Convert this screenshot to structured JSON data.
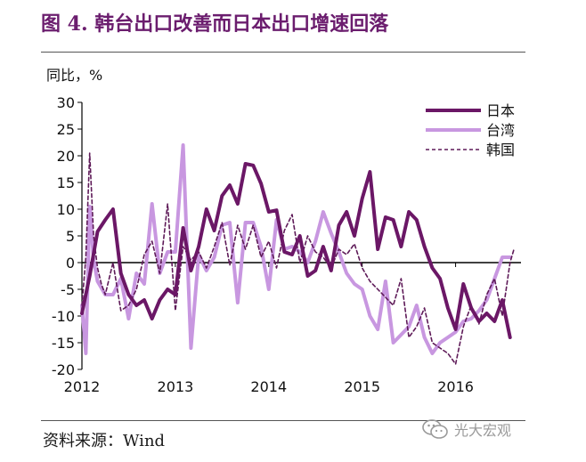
{
  "figure": {
    "title": "图 4. 韩台出口改善而日本出口增速回落",
    "source": "资料来源：Wind",
    "watermark": "光大宏观"
  },
  "chart_data": {
    "type": "line",
    "ylabel": "同比，%",
    "ylim": [
      -20,
      30
    ],
    "yticks": [
      -20,
      -15,
      -10,
      -5,
      0,
      5,
      10,
      15,
      20,
      25,
      30
    ],
    "xlim": [
      2012.0,
      2016.7
    ],
    "xticks": [
      "2012",
      "2013",
      "2014",
      "2015",
      "2016"
    ],
    "grid": false,
    "legend_position": "top-right",
    "colors": {
      "japan": "#6b1766",
      "taiwan": "#c897e0",
      "korea": "#5e1a58"
    },
    "series": [
      {
        "name": "日本",
        "key": "japan",
        "style": "solid-thick",
        "x": [
          2012.0,
          2012.083,
          2012.167,
          2012.25,
          2012.333,
          2012.417,
          2012.5,
          2012.583,
          2012.667,
          2012.75,
          2012.833,
          2012.917,
          2013.0,
          2013.083,
          2013.167,
          2013.25,
          2013.333,
          2013.417,
          2013.5,
          2013.583,
          2013.667,
          2013.75,
          2013.833,
          2013.917,
          2014.0,
          2014.083,
          2014.167,
          2014.25,
          2014.333,
          2014.417,
          2014.5,
          2014.583,
          2014.667,
          2014.75,
          2014.833,
          2014.917,
          2015.0,
          2015.083,
          2015.167,
          2015.25,
          2015.333,
          2015.417,
          2015.5,
          2015.583,
          2015.667,
          2015.75,
          2015.833,
          2015.917,
          2016.0,
          2016.083,
          2016.167,
          2016.25,
          2016.333,
          2016.417,
          2016.5,
          2016.583
        ],
        "values": [
          -9.5,
          -2.5,
          5.8,
          8.0,
          10.0,
          -2.0,
          -6.0,
          -8.0,
          -7.0,
          -10.5,
          -7.0,
          -5.0,
          -6.0,
          6.5,
          -1.5,
          3.0,
          10.0,
          6.0,
          12.5,
          14.5,
          11.0,
          18.5,
          18.2,
          14.8,
          9.5,
          9.8,
          2.0,
          1.5,
          5.0,
          -2.5,
          -1.5,
          3.0,
          -1.5,
          7.0,
          9.5,
          5.0,
          12.0,
          17.0,
          2.5,
          8.5,
          8.0,
          3.0,
          9.5,
          8.0,
          3.0,
          -1.0,
          -3.0,
          -8.5,
          -12.5,
          -4.0,
          -8.5,
          -11.0,
          -9.5,
          -11.0,
          -7.0,
          -14.0
        ]
      },
      {
        "name": "台湾",
        "key": "taiwan",
        "style": "solid-thick",
        "x": [
          2012.0,
          2012.042,
          2012.083,
          2012.125,
          2012.167,
          2012.25,
          2012.333,
          2012.417,
          2012.5,
          2012.583,
          2012.667,
          2012.75,
          2012.833,
          2012.917,
          2013.0,
          2013.083,
          2013.167,
          2013.25,
          2013.333,
          2013.417,
          2013.5,
          2013.583,
          2013.667,
          2013.75,
          2013.833,
          2013.917,
          2014.0,
          2014.083,
          2014.167,
          2014.25,
          2014.333,
          2014.417,
          2014.5,
          2014.583,
          2014.667,
          2014.75,
          2014.833,
          2014.917,
          2015.0,
          2015.083,
          2015.167,
          2015.25,
          2015.333,
          2015.417,
          2015.5,
          2015.583,
          2015.667,
          2015.75,
          2015.833,
          2015.917,
          2016.0,
          2016.083,
          2016.167,
          2016.25,
          2016.333,
          2016.417,
          2016.5,
          2016.583
        ],
        "values": [
          -8.0,
          -17.0,
          10.5,
          0.5,
          -3.5,
          -6.0,
          -6.0,
          -3.0,
          -10.5,
          -2.0,
          -4.0,
          11.0,
          -2.0,
          2.0,
          2.0,
          22.0,
          -16.0,
          1.5,
          -1.5,
          1.0,
          7.0,
          7.5,
          -7.5,
          7.5,
          7.5,
          3.0,
          -5.0,
          8.0,
          2.5,
          3.0,
          2.0,
          0.0,
          4.0,
          9.5,
          5.5,
          2.0,
          -2.0,
          -4.0,
          -5.0,
          -10.0,
          -12.5,
          -3.5,
          -15.0,
          -13.5,
          -12.0,
          -8.0,
          -14.0,
          -17.0,
          -15.0,
          -14.0,
          -13.0,
          -11.0,
          -10.5,
          -9.0,
          -7.0,
          -3.0,
          1.0,
          1.0
        ]
      },
      {
        "name": "韩国",
        "key": "korea",
        "style": "dashed-thin",
        "x": [
          2012.0,
          2012.042,
          2012.083,
          2012.125,
          2012.167,
          2012.208,
          2012.25,
          2012.333,
          2012.417,
          2012.5,
          2012.583,
          2012.667,
          2012.75,
          2012.833,
          2012.917,
          2013.0,
          2013.083,
          2013.167,
          2013.25,
          2013.333,
          2013.417,
          2013.5,
          2013.583,
          2013.667,
          2013.75,
          2013.833,
          2013.917,
          2014.0,
          2014.083,
          2014.167,
          2014.25,
          2014.333,
          2014.417,
          2014.5,
          2014.583,
          2014.667,
          2014.75,
          2014.833,
          2014.917,
          2015.0,
          2015.083,
          2015.167,
          2015.25,
          2015.333,
          2015.417,
          2015.5,
          2015.583,
          2015.667,
          2015.75,
          2015.833,
          2015.917,
          2016.0,
          2016.083,
          2016.167,
          2016.25,
          2016.333,
          2016.417,
          2016.5,
          2016.583,
          2016.625
        ],
        "values": [
          -8.0,
          1.0,
          20.5,
          5.0,
          -1.0,
          -4.0,
          -6.0,
          0.0,
          -9.0,
          -8.0,
          -5.0,
          1.5,
          4.0,
          -2.0,
          11.0,
          -9.0,
          3.0,
          0.5,
          2.0,
          -1.0,
          3.0,
          7.5,
          -0.5,
          7.0,
          2.5,
          7.0,
          1.0,
          4.0,
          -1.0,
          6.0,
          9.0,
          0.0,
          5.0,
          2.0,
          1.0,
          -1.0,
          2.5,
          1.5,
          3.5,
          -1.0,
          -3.5,
          -5.0,
          -6.5,
          -8.0,
          -3.0,
          -14.0,
          -12.0,
          -8.5,
          -15.0,
          -16.0,
          -17.0,
          -19.0,
          -12.0,
          -8.0,
          -11.5,
          -6.0,
          -3.0,
          -10.0,
          0.0,
          2.5
        ]
      }
    ]
  }
}
